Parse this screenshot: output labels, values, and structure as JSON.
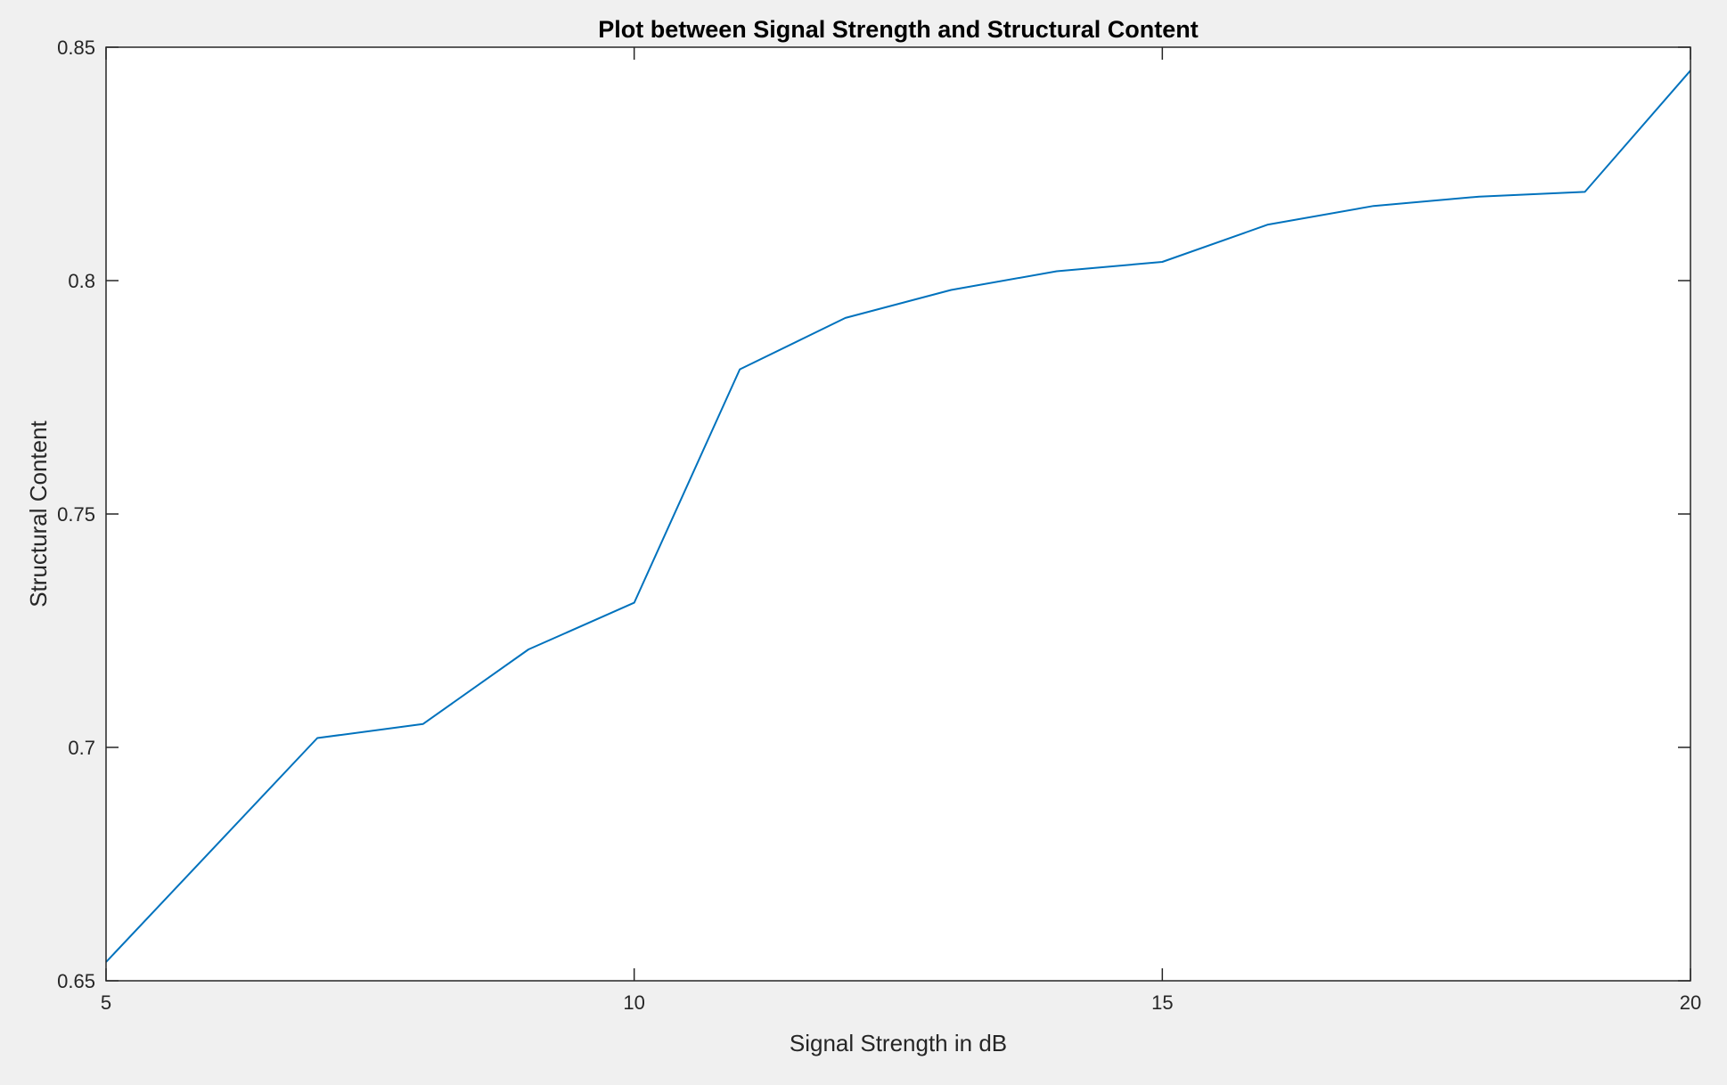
{
  "chart_data": {
    "type": "line",
    "title": "Plot between Signal Strength and Structural Content",
    "xlabel": "Signal Strength in dB",
    "ylabel": "Structural Content",
    "xlim": [
      5,
      20
    ],
    "ylim": [
      0.65,
      0.85
    ],
    "xticks": [
      5,
      10,
      15,
      20
    ],
    "xtick_labels": [
      "5",
      "10",
      "15",
      "20"
    ],
    "yticks": [
      0.65,
      0.7,
      0.75,
      0.8,
      0.85
    ],
    "ytick_labels": [
      "0.65",
      "0.7",
      "0.75",
      "0.8",
      "0.85"
    ],
    "grid": false,
    "series": [
      {
        "color": "#0072bd",
        "x": [
          5,
          6,
          7,
          8,
          9,
          10,
          11,
          12,
          13,
          14,
          15,
          16,
          17,
          18,
          19,
          20
        ],
        "y": [
          0.654,
          0.678,
          0.702,
          0.705,
          0.721,
          0.731,
          0.781,
          0.792,
          0.798,
          0.802,
          0.804,
          0.812,
          0.816,
          0.818,
          0.819,
          0.845
        ]
      }
    ]
  }
}
